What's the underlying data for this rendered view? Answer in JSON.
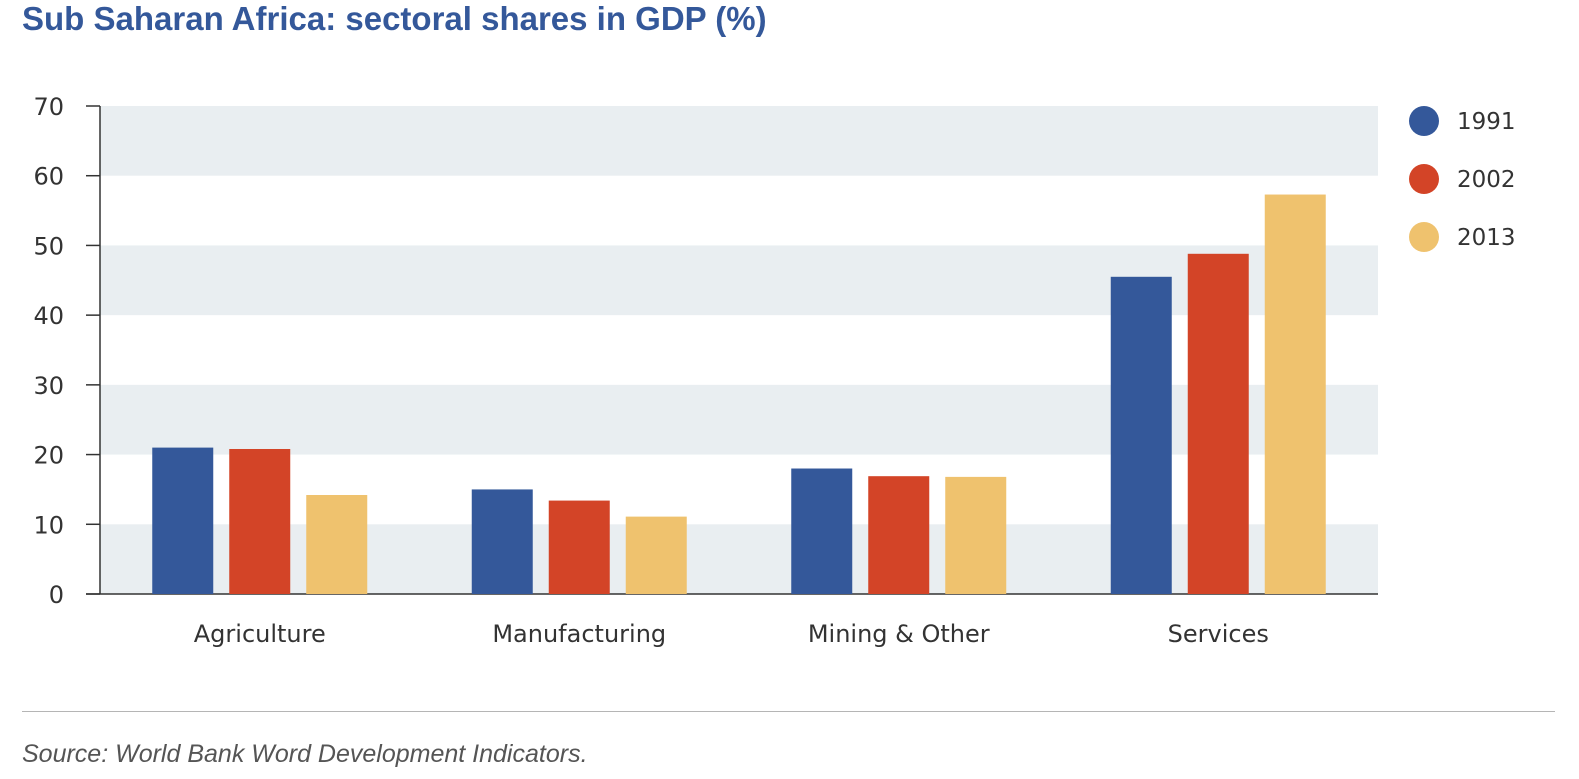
{
  "title": "Sub Saharan Africa: sectoral shares in GDP (%)",
  "source": "Source: World Bank Word Development Indicators.",
  "chart_data": {
    "type": "bar",
    "title": "Sub Saharan Africa: sectoral shares in GDP (%)",
    "xlabel": "",
    "ylabel": "",
    "categories": [
      "Agriculture",
      "Manufacturing",
      "Mining & Other",
      "Services"
    ],
    "series": [
      {
        "name": "1991",
        "color": "#34589a",
        "values": [
          21.0,
          15.0,
          18.0,
          45.5
        ]
      },
      {
        "name": "2002",
        "color": "#d34427",
        "values": [
          20.8,
          13.4,
          16.9,
          48.8
        ]
      },
      {
        "name": "2013",
        "color": "#efc26e",
        "values": [
          14.2,
          11.1,
          16.8,
          57.3
        ]
      }
    ],
    "ylim": [
      0,
      70
    ],
    "yticks": [
      0,
      10,
      20,
      30,
      40,
      50,
      60,
      70
    ],
    "grid": "alternating horizontal bands",
    "band_color": "#e9eef1",
    "legend_position": "right"
  }
}
